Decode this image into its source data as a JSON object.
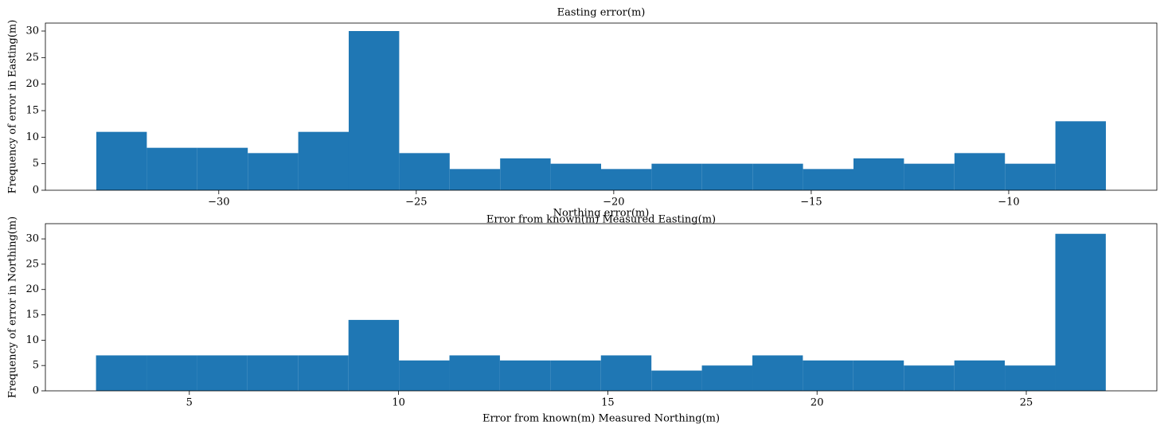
{
  "chart_data": [
    {
      "type": "histogram",
      "title": "Easting error(m)",
      "x_label": "Error from known(m) Measured Easting(m)",
      "y_label": "Frequency of error in Easting(m)",
      "color": "#1f77b4",
      "bins": [
        -33.1,
        -31.822,
        -30.544,
        -29.266,
        -27.988,
        -26.71,
        -25.432,
        -24.154,
        -22.876,
        -21.598,
        -20.32,
        -19.042,
        -17.764,
        -16.486,
        -15.208,
        -13.93,
        -12.652,
        -11.374,
        -10.096,
        -8.818,
        -7.54
      ],
      "values": [
        11,
        8,
        8,
        7,
        11,
        30,
        7,
        4,
        6,
        5,
        4,
        5,
        5,
        5,
        4,
        6,
        5,
        7,
        5,
        13
      ],
      "xlim": [
        -34.39,
        -6.25
      ],
      "xticks": [
        {
          "value": -30,
          "label": "−30"
        },
        {
          "value": -25,
          "label": "−25"
        },
        {
          "value": -20,
          "label": "−20"
        },
        {
          "value": -15,
          "label": "−15"
        },
        {
          "value": -10,
          "label": "−10"
        }
      ],
      "ylim": [
        0,
        31.5
      ],
      "yticks": [
        0,
        5,
        10,
        15,
        20,
        25,
        30
      ]
    },
    {
      "type": "histogram",
      "title": "Northing error(m)",
      "x_label": "Error from known(m) Measured Northing(m)",
      "y_label": "Frequency of error in Northing(m)",
      "color": "#1f77b4",
      "bins": [
        2.77,
        3.977,
        5.183,
        6.39,
        7.596,
        8.803,
        10.009,
        11.216,
        12.422,
        13.629,
        14.835,
        16.042,
        17.248,
        18.455,
        19.661,
        20.868,
        22.074,
        23.281,
        24.487,
        25.694,
        26.9
      ],
      "values": [
        7,
        7,
        7,
        7,
        7,
        14,
        6,
        7,
        6,
        6,
        7,
        4,
        5,
        7,
        6,
        6,
        5,
        6,
        5,
        31
      ],
      "xlim": [
        1.56,
        28.12
      ],
      "xticks": [
        5,
        10,
        15,
        20,
        25
      ],
      "ylim": [
        0,
        33
      ],
      "yticks": [
        0,
        5,
        10,
        15,
        20,
        25,
        30
      ]
    }
  ]
}
